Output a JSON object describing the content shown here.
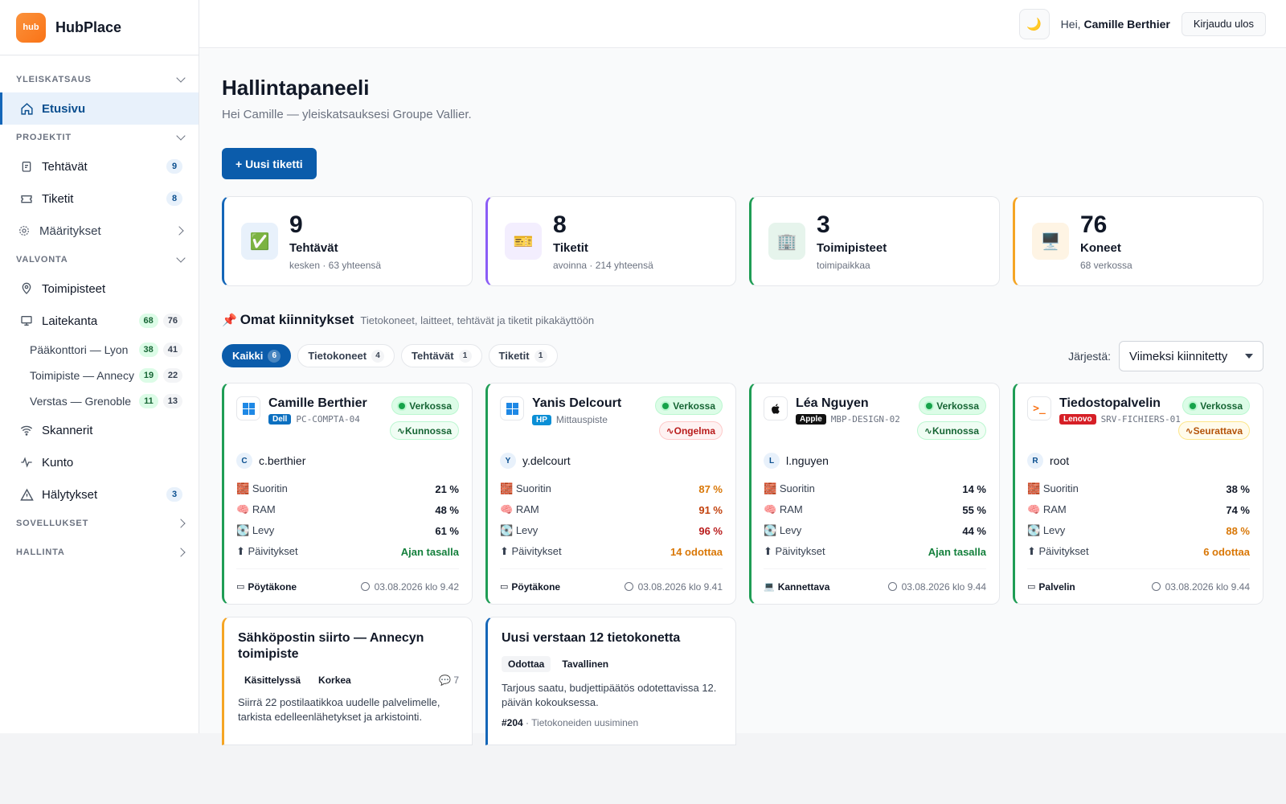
{
  "brand": {
    "logo_text": "hub",
    "name": "HubPlace"
  },
  "sidebar": {
    "sections": [
      {
        "label": "YLEISKATSAUS"
      },
      {
        "label": "PROJEKTIT"
      },
      {
        "label": "VALVONTA"
      },
      {
        "label": "SOVELLUKSET"
      },
      {
        "label": "HALLINTA"
      }
    ],
    "items": {
      "home": {
        "label": "Etusivu"
      },
      "tasks": {
        "label": "Tehtävät",
        "count": "9"
      },
      "tickets": {
        "label": "Tiketit",
        "count": "8"
      },
      "settings": {
        "label": "Määritykset"
      },
      "sites": {
        "label": "Toimipisteet"
      },
      "inventory": {
        "label": "Laitekanta",
        "online": "68",
        "total": "76"
      },
      "site1": {
        "label": "Pääkonttori — Lyon",
        "online": "38",
        "total": "41"
      },
      "site2": {
        "label": "Toimipiste — Annecy",
        "online": "19",
        "total": "22"
      },
      "site3": {
        "label": "Verstas — Grenoble",
        "online": "11",
        "total": "13"
      },
      "scanners": {
        "label": "Skannerit"
      },
      "health": {
        "label": "Kunto"
      },
      "alerts": {
        "label": "Hälytykset",
        "count": "3"
      }
    }
  },
  "header": {
    "theme_icon": "moon-icon",
    "greeting_prefix": "Hei,",
    "user_name": "Camille Berthier",
    "logout_label": "Kirjaudu ulos"
  },
  "page": {
    "title": "Hallintapaneeli",
    "subtitle": "Hei Camille — yleiskatsauksesi Groupe Vallier.",
    "new_ticket": "+ Uusi tiketti"
  },
  "stats": [
    {
      "icon": "✅",
      "value": "9",
      "label": "Tehtävät",
      "meta": "kesken · 63 yhteensä",
      "accent": "#1466b8",
      "bg": "#e8f1fb"
    },
    {
      "icon": "🎫",
      "value": "8",
      "label": "Tiketit",
      "meta": "avoinna · 214 yhteensä",
      "accent": "#8b5cf6",
      "bg": "#f3eefe"
    },
    {
      "icon": "🏢",
      "value": "3",
      "label": "Toimipisteet",
      "meta": "toimipaikkaa",
      "accent": "#1f9d55",
      "bg": "#e6f4ec"
    },
    {
      "icon": "🖥️",
      "value": "76",
      "label": "Koneet",
      "meta": "68 verkossa",
      "accent": "#f5a524",
      "bg": "#fef4e4"
    }
  ],
  "pins": {
    "title": "Omat kiinnitykset",
    "description": "Tietokoneet, laitteet, tehtävät ja tiketit pikakäyttöön",
    "filters": [
      {
        "label": "Kaikki",
        "count": "6"
      },
      {
        "label": "Tietokoneet",
        "count": "4"
      },
      {
        "label": "Tehtävät",
        "count": "1"
      },
      {
        "label": "Tiketit",
        "count": "1"
      }
    ],
    "sort_label": "Järjestä:",
    "sort_value": "Viimeksi kiinnitetty"
  },
  "metric_labels": {
    "cpu": "Suoritin",
    "ram": "RAM",
    "disk": "Levy",
    "updates": "Päivitykset"
  },
  "computers": [
    {
      "name": "Camille Berthier",
      "brand": "Dell",
      "brand_color": "#0b6fc0",
      "host": "PC-COMPTA-04",
      "os": "windows",
      "status": "Verkossa",
      "health": "Kunnossa",
      "health_kind": "ok",
      "user_initial": "C",
      "user": "c.berthier",
      "cpu": "21 %",
      "ram": "48 %",
      "disk": "61 %",
      "updates": "Ajan tasalla",
      "cpu_c": "",
      "ram_c": "",
      "disk_c": "",
      "upd_c": "green",
      "type": "Pöytäkone",
      "date": "03.08.2026 klo 9.42"
    },
    {
      "name": "Yanis Delcourt",
      "brand": "HP",
      "brand_color": "#0b8fd6",
      "host": "Mittauspiste",
      "os": "windows",
      "status": "Verkossa",
      "health": "Ongelma",
      "health_kind": "err",
      "user_initial": "Y",
      "user": "y.delcourt",
      "cpu": "87 %",
      "ram": "91 %",
      "disk": "96 %",
      "updates": "14 odottaa",
      "cpu_c": "amber",
      "ram_c": "red",
      "disk_c": "redder",
      "upd_c": "amber",
      "type": "Pöytäkone",
      "date": "03.08.2026 klo 9.41"
    },
    {
      "name": "Léa Nguyen",
      "brand": "Apple",
      "brand_color": "#111111",
      "host": "MBP-DESIGN-02",
      "os": "apple",
      "status": "Verkossa",
      "health": "Kunnossa",
      "health_kind": "ok",
      "user_initial": "L",
      "user": "l.nguyen",
      "cpu": "14 %",
      "ram": "55 %",
      "disk": "44 %",
      "updates": "Ajan tasalla",
      "cpu_c": "",
      "ram_c": "",
      "disk_c": "",
      "upd_c": "green",
      "type": "Kannettava",
      "date": "03.08.2026 klo 9.44"
    },
    {
      "name": "Tiedostopalvelin",
      "brand": "Lenovo",
      "brand_color": "#d61f26",
      "host": "SRV-FICHIERS-01",
      "os": "linux",
      "status": "Verkossa",
      "health": "Seurattava",
      "health_kind": "warn",
      "user_initial": "R",
      "user": "root",
      "cpu": "38 %",
      "ram": "74 %",
      "disk": "88 %",
      "updates": "6 odottaa",
      "cpu_c": "",
      "ram_c": "",
      "disk_c": "amber",
      "upd_c": "amber",
      "type": "Palvelin",
      "date": "03.08.2026 klo 9.44"
    }
  ],
  "task_card": {
    "title": "Sähköpostin siirto — Annecyn toimipiste",
    "status": "Käsittelyssä",
    "priority": "Korkea",
    "comments": "7",
    "description": "Siirrä 22 postilaatikkoa uudelle palvelimelle, tarkista edelleenlähetykset ja arkistointi."
  },
  "ticket_card": {
    "title": "Uusi verstaan 12 tietokonetta",
    "status": "Odottaa",
    "priority": "Tavallinen",
    "description": "Tarjous saatu, budjettipäätös odotettavissa 12. päivän kokouksessa.",
    "number": "#204",
    "category": "· Tietokoneiden uusiminen"
  }
}
